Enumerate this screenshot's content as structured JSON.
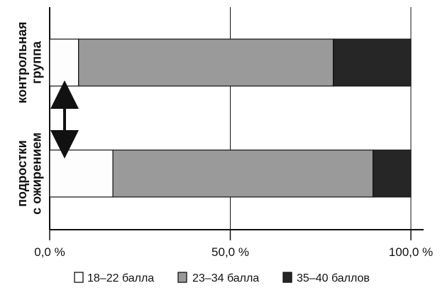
{
  "chart_data": {
    "type": "bar",
    "orientation": "horizontal",
    "stacked": true,
    "normalized": true,
    "categories": [
      [
        "контрольная",
        "группа"
      ],
      [
        "подростки",
        "с ожирением"
      ]
    ],
    "series": [
      {
        "name": "18–22 балла",
        "values": [
          8,
          17.5
        ],
        "color": "#fdfdfd"
      },
      {
        "name": "23–34 балла",
        "values": [
          70.5,
          72
        ],
        "color": "#9a9a9a"
      },
      {
        "name": "35–40 баллов",
        "values": [
          21.5,
          10.5
        ],
        "color": "#262626"
      }
    ],
    "xlim": [
      0,
      100
    ],
    "xticks": [
      0,
      50,
      100
    ],
    "xtick_labels": [
      "0,0 %",
      "50,0 %",
      "100,0 %"
    ],
    "gridlines": "vertical at 50% and 100%",
    "legend_position": "bottom",
    "annotation": "double-headed vertical arrow between the two bars"
  }
}
